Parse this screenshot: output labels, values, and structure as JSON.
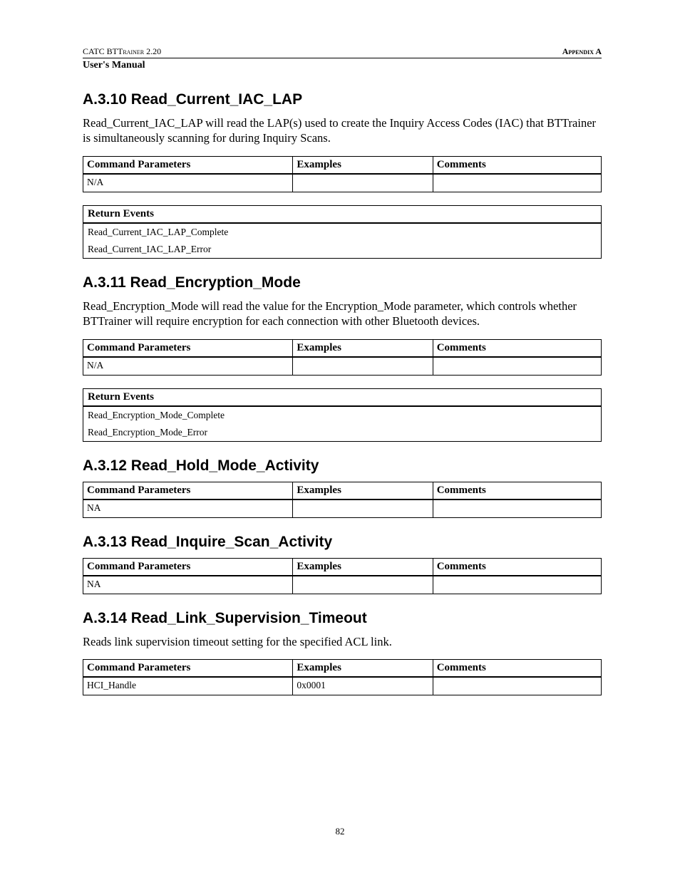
{
  "header": {
    "left": "CATC BTTrainer 2.20",
    "right": "Appendix A",
    "manual": "User's Manual"
  },
  "page_number": "82",
  "col_headers": {
    "params": "Command Parameters",
    "examples": "Examples",
    "comments": "Comments",
    "return_events": "Return Events"
  },
  "sections": {
    "s1": {
      "heading": "A.3.10  Read_Current_IAC_LAP",
      "body": "Read_Current_IAC_LAP will read the LAP(s) used to create the Inquiry Access Codes (IAC) that BTTrainer is simultaneously scanning for during Inquiry Scans.",
      "param_row": {
        "p": "N/A",
        "e": "",
        "c": ""
      },
      "events": [
        "Read_Current_IAC_LAP_Complete",
        "Read_Current_IAC_LAP_Error"
      ]
    },
    "s2": {
      "heading": "A.3.11  Read_Encryption_Mode",
      "body": "Read_Encryption_Mode will read the value for the Encryption_Mode parameter, which controls whether BTTrainer will require encryption for each connection with other Bluetooth devices.",
      "param_row": {
        "p": "N/A",
        "e": "",
        "c": ""
      },
      "events": [
        "Read_Encryption_Mode_Complete",
        "Read_Encryption_Mode_Error"
      ]
    },
    "s3": {
      "heading": "A.3.12  Read_Hold_Mode_Activity",
      "param_row": {
        "p": "NA",
        "e": "",
        "c": ""
      }
    },
    "s4": {
      "heading": "A.3.13  Read_Inquire_Scan_Activity",
      "param_row": {
        "p": "NA",
        "e": "",
        "c": ""
      }
    },
    "s5": {
      "heading": "A.3.14  Read_Link_Supervision_Timeout",
      "body": "Reads link supervision timeout setting for the specified ACL link.",
      "param_row": {
        "p": "HCI_Handle",
        "e": "0x0001",
        "c": ""
      }
    }
  }
}
